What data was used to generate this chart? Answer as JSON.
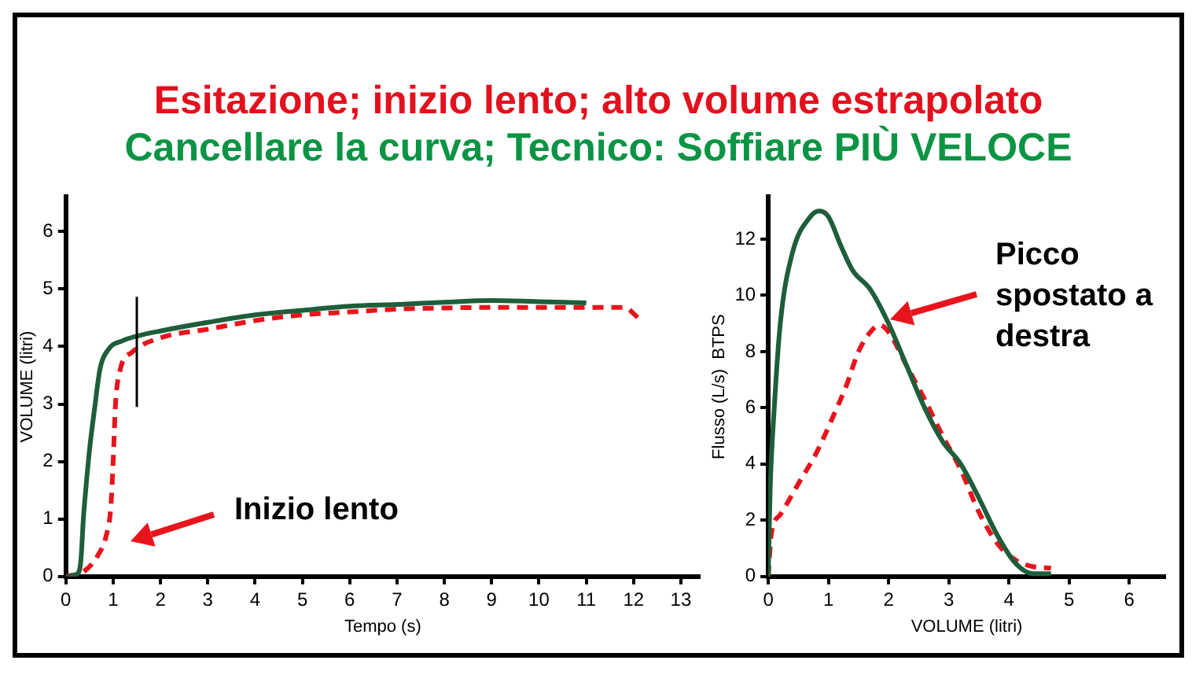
{
  "chart_data": [
    {
      "type": "line",
      "title": "Esitazione; inizio lento; alto volume estrapolato",
      "subtitle": "Cancellare la curva; Tecnico: Soffiare PIÙ VELOCE",
      "xlabel": "Tempo (s)",
      "ylabel": "VOLUME (litri)",
      "xlim": [
        0,
        13.4
      ],
      "xticks": [
        0,
        1,
        2,
        3,
        4,
        5,
        6,
        7,
        8,
        9,
        10,
        11,
        12,
        13
      ],
      "ylim": [
        0,
        6.6
      ],
      "yticks": [
        0,
        1,
        2,
        3,
        4,
        5,
        6
      ],
      "marker": "none",
      "series": [
        {
          "color": "#1e5e3a",
          "line_style": "solid",
          "x": [
            0,
            0.25,
            0.32,
            0.37,
            0.42,
            0.5,
            0.62,
            0.72,
            0.9,
            1.2,
            1.5,
            2,
            3,
            4,
            5,
            6,
            7,
            8,
            9,
            10,
            11
          ],
          "values": [
            0,
            0.05,
            0.3,
            1,
            1.5,
            2.2,
            3,
            3.6,
            3.95,
            4.1,
            4.18,
            4.27,
            4.42,
            4.55,
            4.63,
            4.7,
            4.73,
            4.77,
            4.8,
            4.78,
            4.76
          ]
        },
        {
          "color": "#e8141c",
          "line_style": "dashed",
          "x": [
            0,
            0.4,
            0.7,
            0.85,
            0.95,
            1,
            1.05,
            1.15,
            1.4,
            2,
            3,
            4,
            5,
            6,
            7,
            8,
            9,
            10,
            11,
            11.8,
            12.1
          ],
          "values": [
            0,
            0.1,
            0.4,
            0.7,
            1.2,
            2,
            3,
            3.6,
            3.9,
            4.15,
            4.3,
            4.45,
            4.55,
            4.6,
            4.65,
            4.67,
            4.68,
            4.68,
            4.68,
            4.68,
            4.5
          ]
        }
      ],
      "ref_lines": [
        {
          "axis": "x",
          "value": 1.5,
          "color": "#000000"
        }
      ],
      "annotations": [
        "Inizio lento"
      ]
    },
    {
      "type": "line",
      "xlabel": "VOLUME (litri)",
      "ylabel": "Flusso (L/s)  BTPS",
      "xlim": [
        0,
        6.6
      ],
      "xticks": [
        0,
        1,
        2,
        3,
        4,
        5,
        6
      ],
      "ylim": [
        0,
        13.5
      ],
      "yticks": [
        0,
        2,
        4,
        6,
        8,
        10,
        12
      ],
      "marker": "none",
      "series": [
        {
          "color": "#1e5e3a",
          "line_style": "solid",
          "x": [
            0,
            0.03,
            0.1,
            0.2,
            0.4,
            0.7,
            0.85,
            1,
            1.2,
            1.4,
            1.7,
            2,
            2.3,
            2.6,
            2.9,
            3.2,
            3.5,
            3.8,
            4.1,
            4.4,
            4.7
          ],
          "values": [
            0,
            3,
            6,
            9,
            11.5,
            12.8,
            13,
            12.8,
            11.8,
            10.9,
            10.2,
            9,
            7.5,
            6,
            4.8,
            4,
            2.8,
            1.5,
            0.5,
            0.1,
            0.1
          ]
        },
        {
          "color": "#e8141c",
          "line_style": "dashed",
          "x": [
            0,
            0.05,
            0.2,
            0.5,
            0.8,
            1.1,
            1.3,
            1.5,
            1.7,
            1.85,
            2,
            2.3,
            2.6,
            2.9,
            3.2,
            3.5,
            3.8,
            4.1,
            4.4,
            4.7
          ],
          "values": [
            0,
            1.5,
            2.2,
            3.3,
            4.4,
            5.8,
            6.8,
            8,
            8.7,
            8.95,
            8.7,
            7.5,
            6.3,
            5,
            3.8,
            2.3,
            1.2,
            0.6,
            0.35,
            0.3
          ]
        }
      ],
      "annotations": [
        "Picco spostato a destra"
      ]
    }
  ]
}
